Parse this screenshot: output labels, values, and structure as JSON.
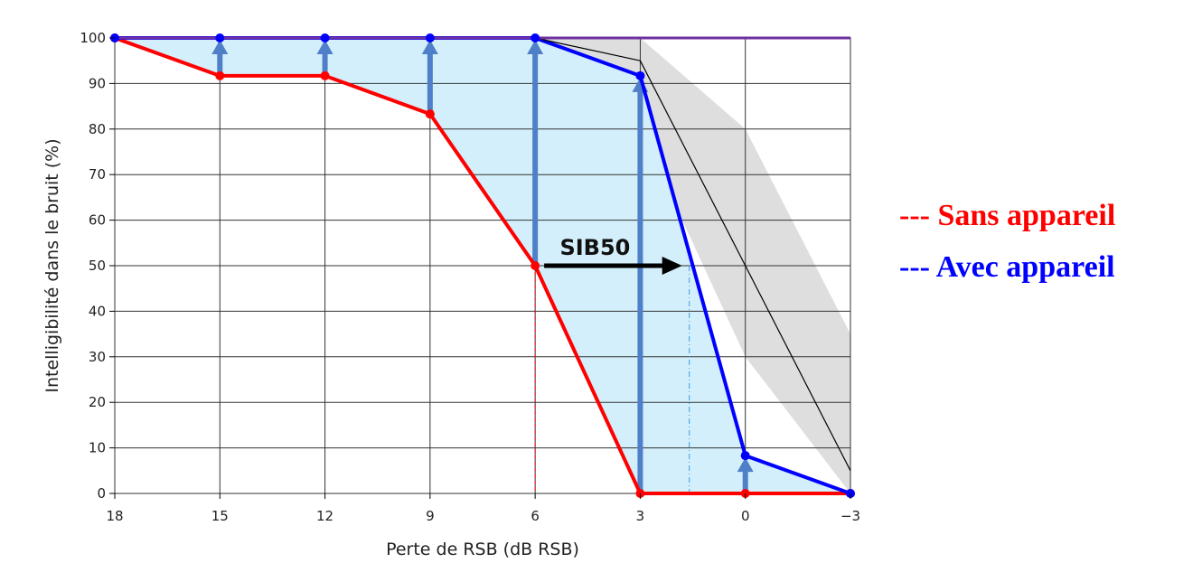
{
  "chart_data": {
    "type": "line",
    "xlabel": "Perte de RSB (dB RSB)",
    "ylabel": "Intelligibilité dans le bruit (%)",
    "x": [
      18,
      15,
      12,
      9,
      6,
      3,
      0,
      -3
    ],
    "x_tick_labels": [
      "18",
      "15",
      "12",
      "9",
      "6",
      "3",
      "0",
      "−3"
    ],
    "y_ticks": [
      0,
      10,
      20,
      30,
      40,
      50,
      60,
      70,
      80,
      90,
      100
    ],
    "xlim": [
      18,
      -3
    ],
    "ylim": [
      0,
      100
    ],
    "grid": true,
    "series": [
      {
        "name": "Sans appareil",
        "color": "#ff0000",
        "values": [
          100,
          91.7,
          91.7,
          83.3,
          50,
          0,
          0,
          0
        ]
      },
      {
        "name": "Avec appareil",
        "color": "#0000ff",
        "values": [
          100,
          100,
          100,
          100,
          100,
          91.7,
          8.3,
          0
        ]
      },
      {
        "name": "",
        "color": "#000000",
        "values": [
          100,
          100,
          100,
          100,
          100,
          95,
          50,
          5
        ]
      },
      {
        "name": "",
        "color": "#7030a0",
        "values": [
          100,
          100,
          100,
          100,
          100,
          100,
          100,
          100
        ]
      }
    ],
    "reference_band": {
      "color": "#c8c8c8",
      "x": [
        6,
        3,
        0,
        -3
      ],
      "upper": [
        100,
        100,
        80,
        35
      ],
      "lower": [
        100,
        80,
        30,
        0
      ]
    },
    "improvement_arrows": {
      "color": "#4f7fc8",
      "x": [
        15,
        12,
        9,
        6,
        3,
        0
      ]
    },
    "annotation": {
      "text": "SIB50",
      "from": {
        "x": 6,
        "y": 50
      },
      "to": {
        "x": 1.6,
        "y": 50
      }
    },
    "legend": {
      "placement": "right",
      "entries": [
        {
          "label": "--- Sans appareil",
          "color": "#ff0000"
        },
        {
          "label": "--- Avec appareil",
          "color": "#0000ff"
        }
      ]
    }
  }
}
